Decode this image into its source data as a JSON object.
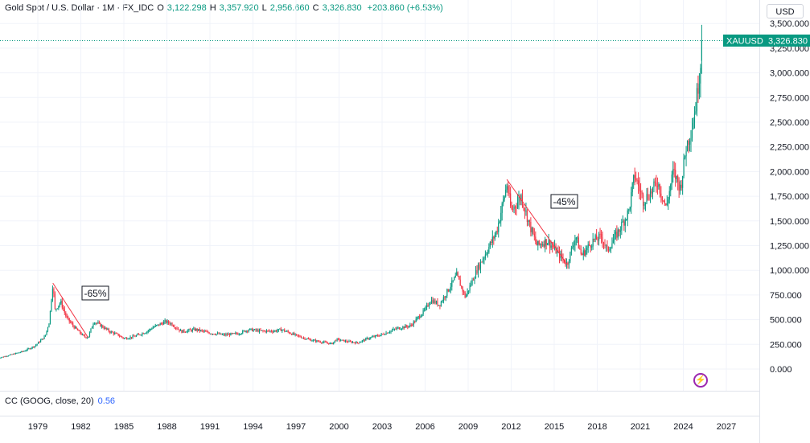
{
  "header": {
    "symbol_title": "Gold Spot / U.S. Dollar · 1M · FX_IDC",
    "open_label": "O",
    "open_value": "3,122.298",
    "high_label": "H",
    "high_value": "3,357.920",
    "low_label": "L",
    "low_value": "2,956.660",
    "close_label": "C",
    "close_value": "3,326.830",
    "change": "+203.860 (+6.53%)"
  },
  "currency_button": "USD",
  "price_tag": {
    "symbol": "XAUUSD",
    "value": "3,326.830"
  },
  "indicator": {
    "label": "CC (GOOG, close, 20)",
    "value": "0.56"
  },
  "annotations": [
    {
      "text": "-65%",
      "from": [
        1980.05,
        870
      ],
      "to": [
        1982.5,
        320
      ]
    },
    {
      "text": "-45%",
      "from": [
        2011.7,
        1920
      ],
      "to": [
        2015.9,
        1060
      ]
    }
  ],
  "colors": {
    "up": "#089981",
    "down": "#f23645",
    "accent": "#089981",
    "indicator": "#2962ff"
  },
  "chart_data": {
    "type": "candlestick",
    "interval": "1M",
    "y_axis": {
      "min": -150,
      "max": 3500,
      "ticks": [
        0,
        250,
        500,
        750,
        1000,
        1250,
        1500,
        1750,
        2000,
        2250,
        2500,
        2750,
        3000,
        3250,
        3500
      ],
      "tick_labels": [
        "0.000",
        "250.000",
        "500.000",
        "750.000",
        "1,000.000",
        "1,250.000",
        "1,500.000",
        "1,750.000",
        "2,000.000",
        "2,250.000",
        "2,500.000",
        "2,750.000",
        "3,000.000",
        "3,250.000",
        "3,500.000"
      ]
    },
    "x_axis": {
      "min": 1976.1,
      "max": 2030.6,
      "ticks": [
        1979,
        1982,
        1985,
        1988,
        1991,
        1994,
        1997,
        2000,
        2003,
        2006,
        2009,
        2012,
        2015,
        2018,
        2021,
        2024,
        2027
      ],
      "tick_labels": [
        "1979",
        "1982",
        "1985",
        "1988",
        "1991",
        "1994",
        "1997",
        "2000",
        "2003",
        "2006",
        "2009",
        "2012",
        "2015",
        "2018",
        "2021",
        "2024",
        "2027"
      ]
    },
    "price_points": [
      [
        1976.2,
        110
      ],
      [
        1977,
        140
      ],
      [
        1978,
        180
      ],
      [
        1978.8,
        235
      ],
      [
        1979.5,
        330
      ],
      [
        1979.8,
        480
      ],
      [
        1980.05,
        870
      ],
      [
        1980.2,
        600
      ],
      [
        1980.6,
        680
      ],
      [
        1981,
        520
      ],
      [
        1981.5,
        430
      ],
      [
        1982.2,
        330
      ],
      [
        1982.5,
        320
      ],
      [
        1982.9,
        480
      ],
      [
        1983.2,
        460
      ],
      [
        1983.6,
        420
      ],
      [
        1984,
        380
      ],
      [
        1984.6,
        345
      ],
      [
        1985,
        310
      ],
      [
        1985.6,
        325
      ],
      [
        1986,
        345
      ],
      [
        1986.6,
        380
      ],
      [
        1987,
        420
      ],
      [
        1987.9,
        480
      ],
      [
        1988.3,
        460
      ],
      [
        1989,
        380
      ],
      [
        1990,
        400
      ],
      [
        1991,
        365
      ],
      [
        1992,
        345
      ],
      [
        1993,
        360
      ],
      [
        1993.7,
        400
      ],
      [
        1994.5,
        385
      ],
      [
        1995.5,
        385
      ],
      [
        1996,
        400
      ],
      [
        1997,
        340
      ],
      [
        1998,
        295
      ],
      [
        1999.5,
        255
      ],
      [
        1999.8,
        300
      ],
      [
        2000.5,
        280
      ],
      [
        2001.3,
        265
      ],
      [
        2002,
        310
      ],
      [
        2003,
        350
      ],
      [
        2004,
        410
      ],
      [
        2005,
        440
      ],
      [
        2006,
        600
      ],
      [
        2006.4,
        700
      ],
      [
        2007,
        650
      ],
      [
        2008.2,
        950
      ],
      [
        2008.8,
        730
      ],
      [
        2009.6,
        1000
      ],
      [
        2010.5,
        1250
      ],
      [
        2011,
        1400
      ],
      [
        2011.7,
        1870
      ],
      [
        2012,
        1600
      ],
      [
        2012.7,
        1750
      ],
      [
        2013.3,
        1450
      ],
      [
        2013.8,
        1250
      ],
      [
        2014.5,
        1300
      ],
      [
        2015.1,
        1200
      ],
      [
        2015.9,
        1060
      ],
      [
        2016.5,
        1350
      ],
      [
        2016.9,
        1150
      ],
      [
        2017.7,
        1300
      ],
      [
        2018.3,
        1340
      ],
      [
        2018.7,
        1200
      ],
      [
        2019.5,
        1400
      ],
      [
        2020.2,
        1600
      ],
      [
        2020.6,
        1970
      ],
      [
        2021.2,
        1710
      ],
      [
        2021.8,
        1800
      ],
      [
        2022.2,
        1900
      ],
      [
        2022.8,
        1630
      ],
      [
        2023.3,
        2000
      ],
      [
        2023.8,
        1830
      ],
      [
        2024.2,
        2250
      ],
      [
        2024.6,
        2450
      ],
      [
        2024.9,
        2700
      ],
      [
        2025.2,
        3100
      ],
      [
        2025.3,
        3327
      ]
    ],
    "last": {
      "open": 3122.298,
      "high": 3357.92,
      "low": 2956.66,
      "close": 3326.83
    }
  }
}
